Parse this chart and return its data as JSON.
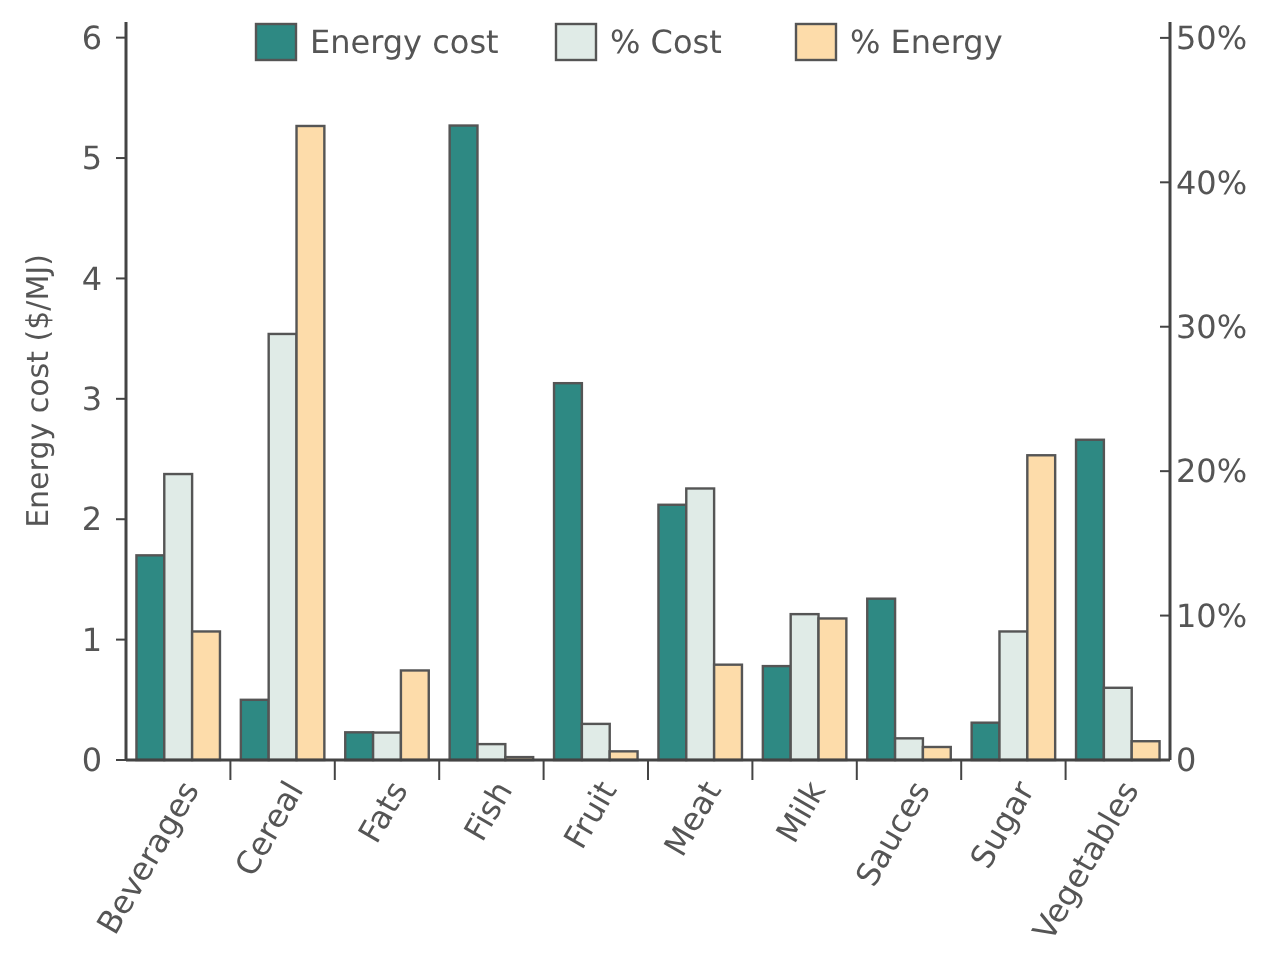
{
  "chart_data": {
    "type": "bar",
    "ylabel": "Energy cost ($/MJ)",
    "categories": [
      "Beverages",
      "Cereal",
      "Fats",
      "Fish",
      "Fruit",
      "Meat",
      "Milk",
      "Sauces",
      "Sugar",
      "Vegetables"
    ],
    "series": [
      {
        "name": "Energy cost",
        "color": "#2e8983",
        "values": [
          1.7,
          0.5,
          0.23,
          5.27,
          3.13,
          2.12,
          0.78,
          1.34,
          0.31,
          2.66
        ]
      },
      {
        "name": "% Cost",
        "color": "#e0ebe7",
        "axis": "y2",
        "values": [
          19.8,
          29.5,
          1.9,
          1.1,
          2.5,
          18.8,
          10.1,
          1.5,
          8.9,
          5.0
        ]
      },
      {
        "name": "% Energy",
        "color": "#fddcaa",
        "axis": "y2",
        "values": [
          8.9,
          43.9,
          6.2,
          0.2,
          0.6,
          6.6,
          9.8,
          0.9,
          21.1,
          1.3
        ]
      }
    ],
    "ylim": [
      0,
      6.13
    ],
    "yticks": [
      0,
      1,
      2,
      3,
      4,
      5,
      6
    ],
    "y2lim": [
      0,
      51.1
    ],
    "y2ticks": [
      0,
      {
        "value": 10,
        "label": "10%"
      },
      {
        "value": 20,
        "label": "20%"
      },
      {
        "value": 30,
        "label": "30%"
      },
      {
        "value": 40,
        "label": "40%"
      },
      {
        "value": 50,
        "label": "50%"
      }
    ],
    "legend": "top",
    "grid": false
  }
}
